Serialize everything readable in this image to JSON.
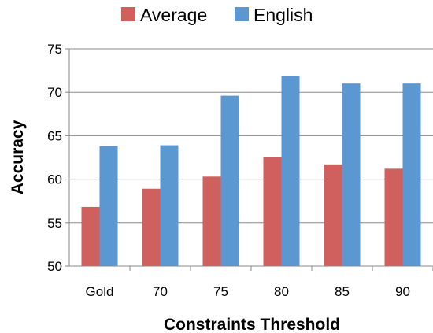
{
  "chart_data": {
    "type": "bar",
    "categories": [
      "Gold",
      "70",
      "75",
      "80",
      "85",
      "90"
    ],
    "series": [
      {
        "name": "Average",
        "color": "#d0605e",
        "values": [
          56.8,
          58.9,
          60.3,
          62.5,
          61.7,
          61.2
        ]
      },
      {
        "name": "English",
        "color": "#5b97d1",
        "values": [
          63.8,
          63.9,
          69.6,
          71.9,
          71.0,
          71.0
        ]
      }
    ],
    "xlabel": "Constraints Threshold",
    "ylabel": "Accuracy",
    "ylim": [
      50,
      75
    ],
    "yticks": [
      "50",
      "55",
      "60",
      "65",
      "70",
      "75"
    ],
    "legend_position": "top",
    "grid": "horizontal"
  }
}
